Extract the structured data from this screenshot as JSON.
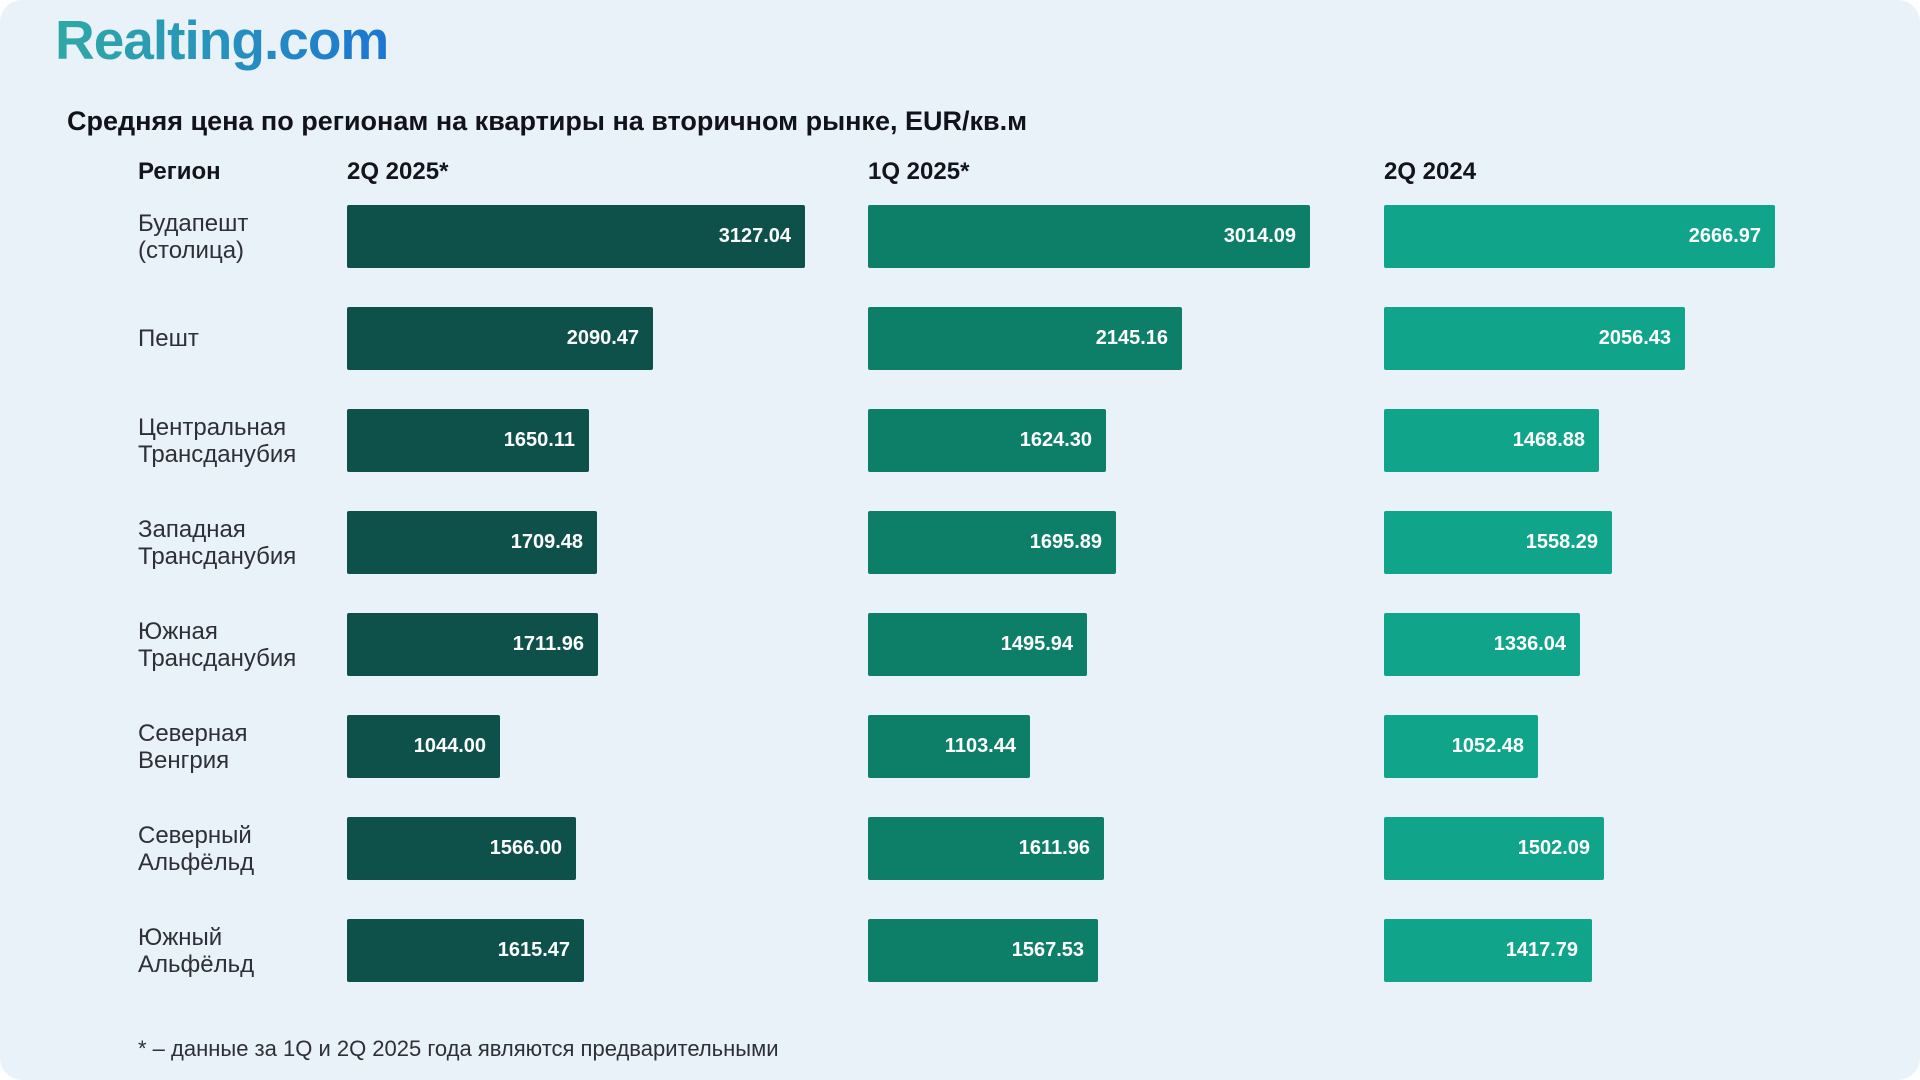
{
  "logo": {
    "text": "Realting.com"
  },
  "title": "Средняя цена по регионам на квартиры на вторичном рынке, EUR/кв.м",
  "table_header": {
    "region": "Регион"
  },
  "footnote": "* – данные за 1Q и 2Q 2025 года являются предварительными",
  "colors": {
    "background": "#e9f1f9",
    "series": [
      "#0d514a",
      "#0d7f69",
      "#10a48a"
    ],
    "logo_gradient_start": "#2fa9a4",
    "logo_gradient_end": "#1d76d2",
    "bar_value_text": "#ffffff"
  },
  "chart_data": {
    "type": "bar",
    "orientation": "horizontal",
    "title": "Средняя цена по регионам на квартиры на вторичном рынке, EUR/кв.м",
    "unit": "EUR/кв.м",
    "grid": false,
    "legend_position": "column-headers",
    "xlim": [
      0,
      3200
    ],
    "categories": [
      "Будапешт (столица)",
      "Пешт",
      "Центральная Трансданубия",
      "Западная Трансданубия",
      "Южная Трансданубия",
      "Северная Венгрия",
      "Северный Альфёльд",
      "Южный Альфёльд"
    ],
    "categories_display": [
      "Будапешт\n(столица)",
      "Пешт",
      "Центральная\nТрансданубия",
      "Западная\nТрансданубия",
      "Южная\nТрансданубия",
      "Северная\nВенгрия",
      "Северный\nАльфёльд",
      "Южный\nАльфёльд"
    ],
    "series": [
      {
        "name": "2Q 2025*",
        "color": "#0d514a",
        "values": [
          3127.04,
          2090.47,
          1650.11,
          1709.48,
          1711.96,
          1044.0,
          1566.0,
          1615.47
        ]
      },
      {
        "name": "1Q 2025*",
        "color": "#0d7f69",
        "values": [
          3014.09,
          2145.16,
          1624.3,
          1695.89,
          1495.94,
          1103.44,
          1611.96,
          1567.53
        ]
      },
      {
        "name": "2Q 2024",
        "color": "#10a48a",
        "values": [
          2666.97,
          2056.43,
          1468.88,
          1558.29,
          1336.04,
          1052.48,
          1502.09,
          1417.79
        ]
      }
    ],
    "value_label_format": "0.00",
    "footnote": "* – данные за 1Q и 2Q 2025 года являются предварительными"
  }
}
